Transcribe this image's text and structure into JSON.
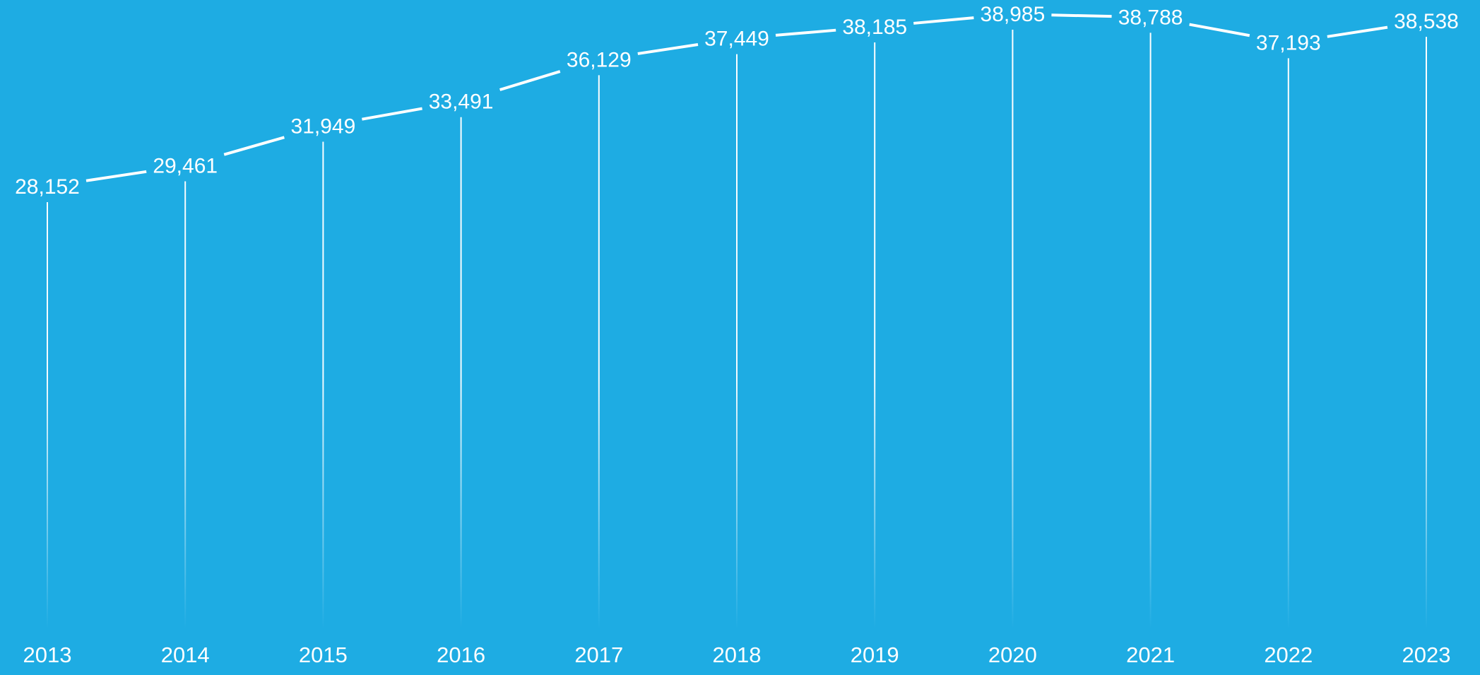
{
  "chart_data": {
    "type": "line",
    "title": "",
    "xlabel": "",
    "ylabel": "",
    "categories": [
      "2013",
      "2014",
      "2015",
      "2016",
      "2017",
      "2018",
      "2019",
      "2020",
      "2021",
      "2022",
      "2023"
    ],
    "values": [
      28152,
      29461,
      31949,
      33491,
      36129,
      37449,
      38185,
      38985,
      38788,
      37193,
      38538
    ],
    "value_labels": [
      "28,152",
      "29,461",
      "31,949",
      "33,491",
      "36,129",
      "37,449",
      "38,185",
      "38,985",
      "38,788",
      "37,193",
      "38,538"
    ],
    "grid": false,
    "legend": "none"
  },
  "colors": {
    "background": "#1eace3",
    "line": "#ffffff",
    "text": "#ffffff"
  }
}
